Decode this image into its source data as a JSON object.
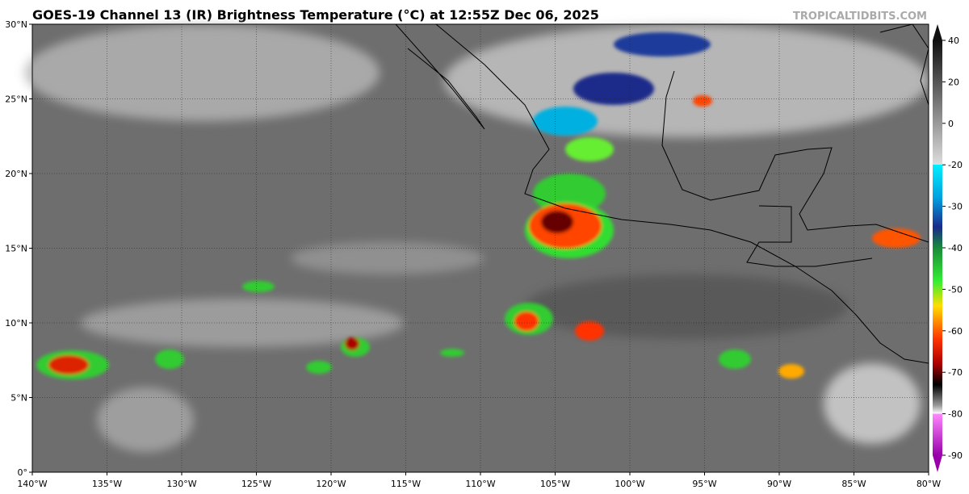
{
  "header": {
    "title": "GOES-19 Channel 13 (IR) Brightness Temperature (°C) at 12:55Z Dec 06, 2025",
    "credit": "TROPICALTIDBITS.COM"
  },
  "map": {
    "xlim": [
      -140,
      -80
    ],
    "ylim": [
      0,
      30
    ],
    "xticks": [
      {
        "value": -140,
        "label": "140°W"
      },
      {
        "value": -135,
        "label": "135°W"
      },
      {
        "value": -130,
        "label": "130°W"
      },
      {
        "value": -125,
        "label": "125°W"
      },
      {
        "value": -120,
        "label": "120°W"
      },
      {
        "value": -115,
        "label": "115°W"
      },
      {
        "value": -110,
        "label": "110°W"
      },
      {
        "value": -105,
        "label": "105°W"
      },
      {
        "value": -100,
        "label": "100°W"
      },
      {
        "value": -95,
        "label": "95°W"
      },
      {
        "value": -90,
        "label": "90°W"
      },
      {
        "value": -85,
        "label": "85°W"
      },
      {
        "value": -80,
        "label": "80°W"
      }
    ],
    "yticks": [
      {
        "value": 0,
        "label": "0°"
      },
      {
        "value": 5,
        "label": "5°N"
      },
      {
        "value": 10,
        "label": "10°N"
      },
      {
        "value": 15,
        "label": "15°N"
      },
      {
        "value": 20,
        "label": "20°N"
      },
      {
        "value": 25,
        "label": "25°N"
      },
      {
        "value": 30,
        "label": "30°N"
      }
    ]
  },
  "colorbar": {
    "ticks": [
      40,
      20,
      0,
      -20,
      -30,
      -40,
      -50,
      -60,
      -70,
      -80,
      -90
    ]
  }
}
